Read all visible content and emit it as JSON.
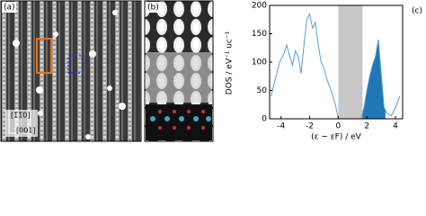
{
  "panel_a": {
    "label": "(a)",
    "direction_labels": [
      "[1̅1̅0]",
      "[001]"
    ]
  },
  "panel_b": {
    "label": "(b)"
  },
  "chart_data": {
    "type": "line",
    "label": "(c)",
    "x_label": "(ε − εF) / eV",
    "y_label": "DOS / eV⁻¹ uc⁻¹",
    "x": [
      -4.7,
      -4.4,
      -4.1,
      -3.8,
      -3.6,
      -3.4,
      -3.2,
      -3.0,
      -2.8,
      -2.6,
      -2.4,
      -2.2,
      -2.0,
      -1.8,
      -1.6,
      -1.4,
      -1.2,
      -1.0,
      -0.8,
      -0.5,
      -0.2,
      0,
      1.6,
      1.8,
      2.0,
      2.2,
      2.4,
      2.6,
      2.8,
      3.0,
      3.2,
      3.4,
      3.7,
      4.0,
      4.3
    ],
    "values": [
      40,
      70,
      100,
      115,
      130,
      110,
      95,
      120,
      110,
      80,
      130,
      175,
      185,
      160,
      170,
      130,
      100,
      90,
      70,
      50,
      25,
      0,
      0,
      20,
      50,
      75,
      95,
      110,
      140,
      80,
      20,
      10,
      5,
      20,
      40
    ],
    "color": "#5b9bd5",
    "fill_color": "#1f77b4",
    "fill_range": [
      1.7,
      3.3
    ],
    "shade_color": "#c8c8c8",
    "shade_range": [
      0,
      1.7
    ],
    "xlim": [
      -4.8,
      4.5
    ],
    "xticks": [
      -4,
      -2,
      0,
      2,
      4
    ],
    "ylim": [
      0,
      200
    ],
    "yticks": [
      0,
      50,
      100,
      150,
      200
    ]
  }
}
